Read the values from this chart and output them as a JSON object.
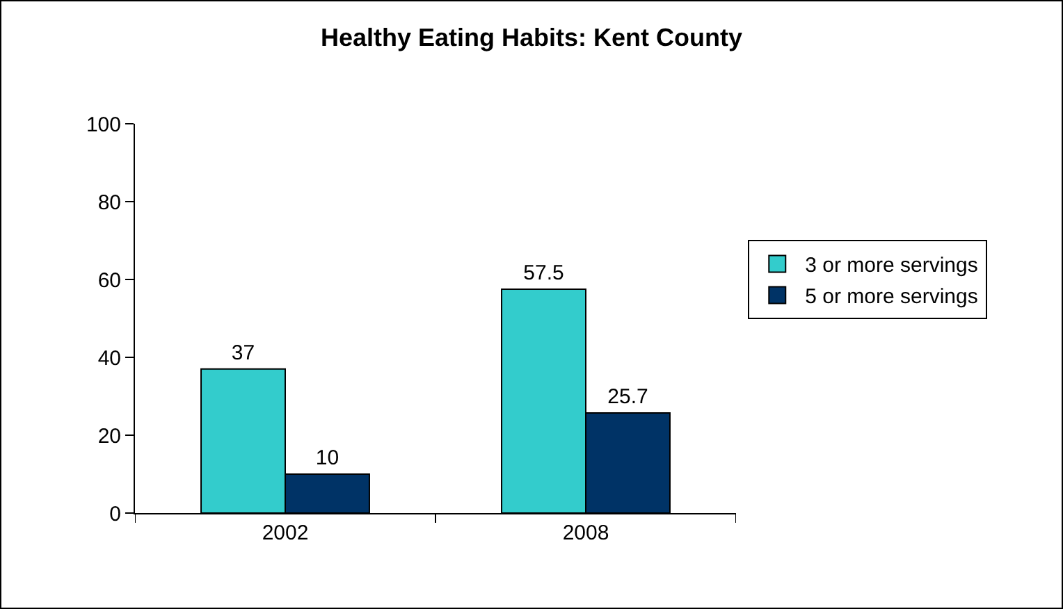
{
  "chart_data": {
    "type": "bar",
    "title": "Healthy Eating Habits: Kent County",
    "categories": [
      "2002",
      "2008"
    ],
    "series": [
      {
        "name": "3 or more servings",
        "color": "#33cccc",
        "values": [
          37,
          57.5
        ]
      },
      {
        "name": "5 or more servings",
        "color": "#003366",
        "values": [
          10,
          25.7
        ]
      }
    ],
    "ylim": [
      0,
      100
    ],
    "yticks": [
      0,
      20,
      40,
      60,
      80,
      100
    ],
    "grid": false,
    "legend": "right",
    "data_labels": true
  }
}
